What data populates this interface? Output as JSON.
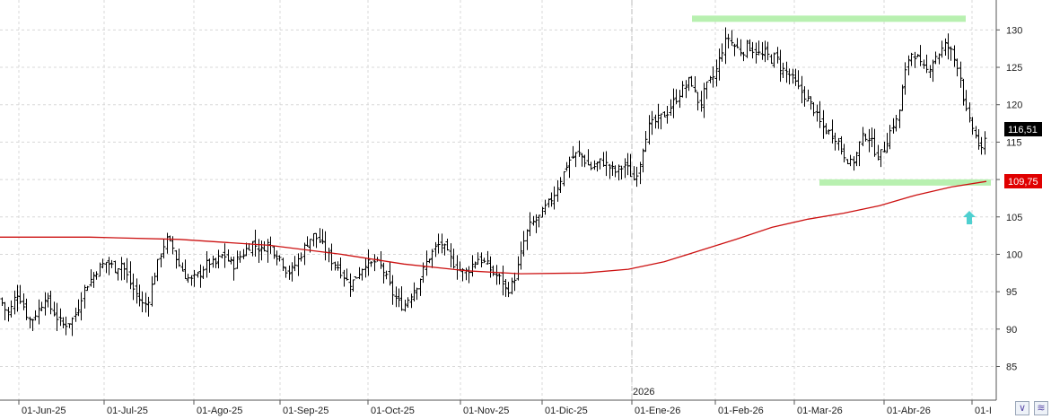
{
  "chart_data": {
    "type": "ohlc",
    "y_range": [
      80.5,
      134
    ],
    "y_ticks": [
      85,
      90,
      95,
      100,
      105,
      110,
      115,
      120,
      125,
      130
    ],
    "x_tick_labels": [
      "01-Jun-25",
      "01-Jul-25",
      "01-Ago-25",
      "01-Sep-25",
      "01-Oct-25",
      "01-Nov-25",
      "01-Dic-25",
      "01-Ene-26",
      "01-Feb-26",
      "01-Mar-26",
      "01-Abr-26",
      "01-I"
    ],
    "year_marker": "2026",
    "last_price": "116,51",
    "moving_average_last": "109,75",
    "colors": {
      "bars": "#000000",
      "moving_average": "#cc1111",
      "levels": "#b8f0b0",
      "arrow": "#4fd0d0",
      "ma_tag": "#e00000",
      "price_tag": "#000000"
    },
    "price_anchors": [
      [
        0,
        94
      ],
      [
        4,
        93
      ],
      [
        8,
        92
      ],
      [
        13,
        93
      ],
      [
        18,
        95
      ],
      [
        23,
        94
      ],
      [
        29,
        92
      ],
      [
        34,
        91
      ],
      [
        39,
        92
      ],
      [
        45,
        93
      ],
      [
        50,
        94.5
      ],
      [
        55,
        93
      ],
      [
        61,
        92
      ],
      [
        66,
        91
      ],
      [
        71,
        90.5
      ],
      [
        77,
        91
      ],
      [
        82,
        91.5
      ],
      [
        87,
        93
      ],
      [
        92,
        95
      ],
      [
        97,
        96
      ],
      [
        103,
        97
      ],
      [
        108,
        98
      ],
      [
        113,
        98.5
      ],
      [
        118,
        99
      ],
      [
        124,
        98.5
      ],
      [
        129,
        98
      ],
      [
        134,
        99
      ],
      [
        140,
        97.5
      ],
      [
        145,
        96
      ],
      [
        150,
        95
      ],
      [
        155,
        94
      ],
      [
        160,
        93
      ],
      [
        165,
        94
      ],
      [
        171,
        97
      ],
      [
        176,
        99
      ],
      [
        181,
        101
      ],
      [
        186,
        102
      ],
      [
        192,
        101
      ],
      [
        197,
        99
      ],
      [
        202,
        98
      ],
      [
        207,
        97
      ],
      [
        213,
        96.5
      ],
      [
        218,
        97
      ],
      [
        223,
        97.5
      ],
      [
        228,
        98.5
      ],
      [
        234,
        99
      ],
      [
        239,
        98.5
      ],
      [
        244,
        99.5
      ],
      [
        249,
        100
      ],
      [
        255,
        99
      ],
      [
        260,
        98.5
      ],
      [
        265,
        99.5
      ],
      [
        270,
        100
      ],
      [
        276,
        101
      ],
      [
        281,
        101.5
      ],
      [
        286,
        101
      ],
      [
        291,
        100.5
      ],
      [
        297,
        101.5
      ],
      [
        302,
        101
      ],
      [
        307,
        100
      ],
      [
        312,
        99.5
      ],
      [
        318,
        98
      ],
      [
        323,
        97.5
      ],
      [
        328,
        98.5
      ],
      [
        333,
        99.5
      ],
      [
        339,
        101
      ],
      [
        344,
        102
      ],
      [
        349,
        102.5
      ],
      [
        354,
        102
      ],
      [
        360,
        101
      ],
      [
        365,
        100
      ],
      [
        370,
        99
      ],
      [
        375,
        98.5
      ],
      [
        381,
        97.5
      ],
      [
        386,
        96.5
      ],
      [
        391,
        96
      ],
      [
        396,
        97
      ],
      [
        402,
        98
      ],
      [
        407,
        99
      ],
      [
        412,
        98.5
      ],
      [
        417,
        99
      ],
      [
        423,
        98.5
      ],
      [
        428,
        97.5
      ],
      [
        433,
        96
      ],
      [
        438,
        94.5
      ],
      [
        444,
        93.5
      ],
      [
        449,
        93
      ],
      [
        454,
        94
      ],
      [
        459,
        95
      ],
      [
        465,
        96
      ],
      [
        470,
        97.5
      ],
      [
        475,
        99
      ],
      [
        480,
        100
      ],
      [
        486,
        101
      ],
      [
        491,
        101.5
      ],
      [
        496,
        100.5
      ],
      [
        501,
        99.5
      ],
      [
        507,
        98.5
      ],
      [
        512,
        98
      ],
      [
        517,
        97.5
      ],
      [
        522,
        98
      ],
      [
        528,
        99
      ],
      [
        533,
        99.5
      ],
      [
        538,
        99
      ],
      [
        543,
        98.5
      ],
      [
        549,
        97.5
      ],
      [
        554,
        97
      ],
      [
        559,
        96.5
      ],
      [
        564,
        95
      ],
      [
        570,
        96
      ],
      [
        575,
        97.5
      ],
      [
        580,
        100
      ],
      [
        585,
        102.5
      ],
      [
        591,
        104
      ],
      [
        596,
        104.5
      ],
      [
        601,
        105
      ],
      [
        606,
        106
      ],
      [
        612,
        107
      ],
      [
        617,
        108
      ],
      [
        622,
        109.5
      ],
      [
        628,
        111
      ],
      [
        633,
        112.5
      ],
      [
        638,
        113
      ],
      [
        643,
        113.5
      ],
      [
        649,
        113
      ],
      [
        654,
        112
      ],
      [
        659,
        111.5
      ],
      [
        664,
        112
      ],
      [
        670,
        112.5
      ],
      [
        675,
        112
      ],
      [
        680,
        111.5
      ],
      [
        685,
        111
      ],
      [
        691,
        111.5
      ],
      [
        696,
        112
      ],
      [
        701,
        111
      ],
      [
        706,
        110
      ],
      [
        712,
        112
      ],
      [
        717,
        115
      ],
      [
        722,
        117
      ],
      [
        727,
        117.5
      ],
      [
        733,
        118
      ],
      [
        738,
        118.5
      ],
      [
        743,
        119
      ],
      [
        748,
        120
      ],
      [
        754,
        121
      ],
      [
        759,
        122
      ],
      [
        764,
        122.5
      ],
      [
        769,
        123.5
      ],
      [
        775,
        121
      ],
      [
        780,
        120
      ],
      [
        785,
        122
      ],
      [
        790,
        123
      ],
      [
        796,
        124
      ],
      [
        801,
        126
      ],
      [
        806,
        128
      ],
      [
        811,
        129
      ],
      [
        816,
        128
      ],
      [
        822,
        127.5
      ],
      [
        827,
        127
      ],
      [
        832,
        128
      ],
      [
        837,
        127.5
      ],
      [
        843,
        127
      ],
      [
        848,
        126.5
      ],
      [
        853,
        127
      ],
      [
        858,
        126
      ],
      [
        864,
        126.5
      ],
      [
        869,
        125
      ],
      [
        874,
        124.5
      ],
      [
        879,
        124
      ],
      [
        885,
        123
      ],
      [
        890,
        122
      ],
      [
        895,
        121.5
      ],
      [
        900,
        120.5
      ],
      [
        906,
        119.5
      ],
      [
        911,
        118
      ],
      [
        916,
        117
      ],
      [
        921,
        116.5
      ],
      [
        927,
        116
      ],
      [
        932,
        115.5
      ],
      [
        937,
        114
      ],
      [
        942,
        113
      ],
      [
        948,
        112
      ],
      [
        953,
        113
      ],
      [
        958,
        115
      ],
      [
        963,
        116
      ],
      [
        969,
        115.5
      ],
      [
        974,
        114
      ],
      [
        979,
        113
      ],
      [
        984,
        114
      ],
      [
        990,
        116
      ],
      [
        995,
        117.5
      ],
      [
        1000,
        118
      ],
      [
        1005,
        122
      ],
      [
        1011,
        126
      ],
      [
        1016,
        127
      ],
      [
        1021,
        126.5
      ],
      [
        1026,
        125
      ],
      [
        1032,
        124.5
      ],
      [
        1037,
        125.5
      ],
      [
        1042,
        126.5
      ],
      [
        1047,
        127
      ],
      [
        1053,
        128
      ],
      [
        1058,
        127.5
      ],
      [
        1063,
        126
      ],
      [
        1068,
        125
      ],
      [
        1073,
        121
      ],
      [
        1078,
        118
      ],
      [
        1083,
        117
      ],
      [
        1089,
        115
      ],
      [
        1094,
        113.5
      ],
      [
        1099,
        116.5
      ]
    ],
    "ma_anchors": [
      [
        0,
        102.3
      ],
      [
        100,
        102.3
      ],
      [
        200,
        102
      ],
      [
        300,
        101.2
      ],
      [
        380,
        100
      ],
      [
        450,
        98.7
      ],
      [
        520,
        97.8
      ],
      [
        580,
        97.4
      ],
      [
        650,
        97.5
      ],
      [
        700,
        98
      ],
      [
        740,
        99
      ],
      [
        780,
        100.5
      ],
      [
        820,
        102
      ],
      [
        860,
        103.6
      ],
      [
        900,
        104.7
      ],
      [
        940,
        105.5
      ],
      [
        980,
        106.5
      ],
      [
        1020,
        107.9
      ],
      [
        1060,
        109
      ],
      [
        1099,
        109.75
      ]
    ],
    "levels": [
      [
        771,
        1076,
        131.5
      ],
      [
        913,
        1104,
        109.6
      ]
    ]
  }
}
